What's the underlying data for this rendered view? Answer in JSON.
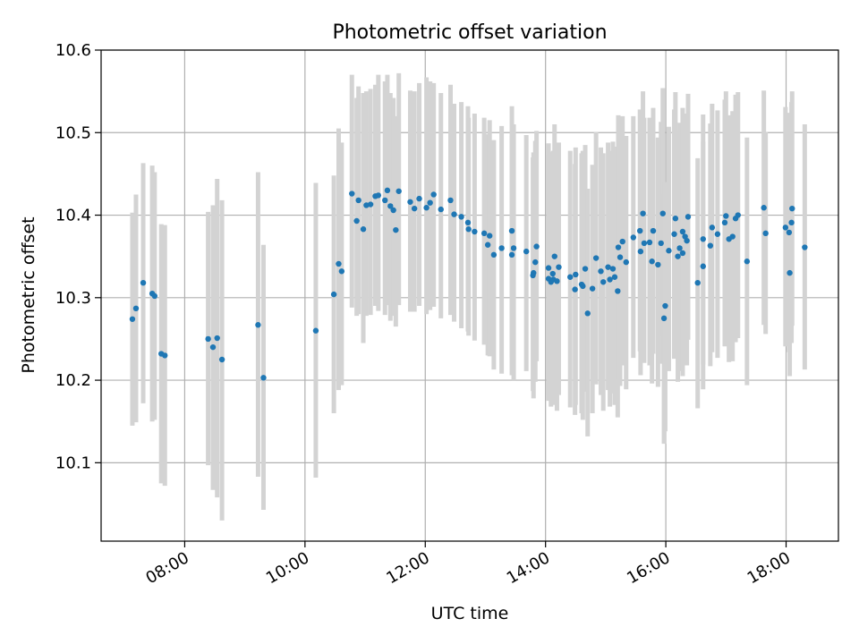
{
  "chart_data": {
    "type": "scatter",
    "title": "Photometric offset variation",
    "xlabel": "UTC time",
    "ylabel": "Photometric offset",
    "x_unit": "hours UTC",
    "xlim": [
      6.61,
      18.87
    ],
    "ylim": [
      10.005,
      10.6
    ],
    "x_ticks": [
      {
        "value": 8,
        "label": "08:00"
      },
      {
        "value": 10,
        "label": "10:00"
      },
      {
        "value": 12,
        "label": "12:00"
      },
      {
        "value": 14,
        "label": "14:00"
      },
      {
        "value": 16,
        "label": "16:00"
      },
      {
        "value": 18,
        "label": "18:00"
      }
    ],
    "y_ticks": [
      {
        "value": 10.1,
        "label": "10.1"
      },
      {
        "value": 10.2,
        "label": "10.2"
      },
      {
        "value": 10.3,
        "label": "10.3"
      },
      {
        "value": 10.4,
        "label": "10.4"
      },
      {
        "value": 10.5,
        "label": "10.5"
      },
      {
        "value": 10.6,
        "label": "10.6"
      }
    ],
    "grid": true,
    "marker_color": "#1f77b4",
    "errorbar_color": "#d3d3d3",
    "points": [
      [
        7.13,
        10.274,
        10.145,
        10.403
      ],
      [
        7.19,
        10.287,
        10.149,
        10.425
      ],
      [
        7.31,
        10.318,
        10.172,
        10.463
      ],
      [
        7.46,
        10.305,
        10.15,
        10.46
      ],
      [
        7.5,
        10.302,
        10.152,
        10.452
      ],
      [
        7.61,
        10.232,
        10.075,
        10.389
      ],
      [
        7.67,
        10.23,
        10.072,
        10.388
      ],
      [
        8.39,
        10.25,
        10.097,
        10.404
      ],
      [
        8.47,
        10.24,
        10.067,
        10.412
      ],
      [
        8.54,
        10.251,
        10.058,
        10.444
      ],
      [
        8.62,
        10.225,
        10.03,
        10.418
      ],
      [
        9.22,
        10.267,
        10.083,
        10.452
      ],
      [
        9.31,
        10.203,
        10.043,
        10.364
      ],
      [
        10.18,
        10.26,
        10.082,
        10.439
      ],
      [
        10.48,
        10.304,
        10.16,
        10.448
      ],
      [
        10.56,
        10.341,
        10.188,
        10.505
      ],
      [
        10.61,
        10.332,
        10.194,
        10.488
      ],
      [
        10.78,
        10.426,
        10.288,
        10.57
      ],
      [
        10.86,
        10.393,
        10.278,
        10.542
      ],
      [
        10.89,
        10.418,
        10.28,
        10.556
      ],
      [
        10.97,
        10.383,
        10.245,
        10.548
      ],
      [
        11.02,
        10.412,
        10.278,
        10.55
      ],
      [
        11.09,
        10.413,
        10.279,
        10.553
      ],
      [
        11.17,
        10.423,
        10.29,
        10.558
      ],
      [
        11.22,
        10.424,
        10.284,
        10.57
      ],
      [
        11.33,
        10.418,
        10.279,
        10.562
      ],
      [
        11.37,
        10.43,
        10.291,
        10.57
      ],
      [
        11.42,
        10.411,
        10.272,
        10.548
      ],
      [
        11.47,
        10.406,
        10.278,
        10.542
      ],
      [
        11.51,
        10.382,
        10.265,
        10.52
      ],
      [
        11.56,
        10.429,
        10.291,
        10.572
      ],
      [
        11.75,
        10.416,
        10.283,
        10.551
      ],
      [
        11.82,
        10.408,
        10.283,
        10.55
      ],
      [
        11.9,
        10.42,
        10.29,
        10.56
      ],
      [
        12.02,
        10.409,
        10.28,
        10.567
      ],
      [
        12.08,
        10.415,
        10.285,
        10.562
      ],
      [
        12.14,
        10.425,
        10.289,
        10.56
      ],
      [
        12.26,
        10.407,
        10.275,
        10.548
      ],
      [
        12.42,
        10.418,
        10.279,
        10.558
      ],
      [
        12.48,
        10.401,
        10.271,
        10.535
      ],
      [
        12.6,
        10.398,
        10.263,
        10.537
      ],
      [
        12.71,
        10.391,
        10.259,
        10.532
      ],
      [
        12.72,
        10.383,
        10.254,
        10.518
      ],
      [
        12.82,
        10.38,
        10.248,
        10.523
      ],
      [
        12.98,
        10.378,
        10.243,
        10.518
      ],
      [
        13.04,
        10.364,
        10.23,
        10.498
      ],
      [
        13.07,
        10.375,
        10.229,
        10.515
      ],
      [
        13.14,
        10.352,
        10.213,
        10.491
      ],
      [
        13.27,
        10.36,
        10.208,
        10.508
      ],
      [
        13.44,
        10.352,
        10.206,
        10.496
      ],
      [
        13.44,
        10.381,
        10.228,
        10.532
      ],
      [
        13.47,
        10.36,
        10.2,
        10.51
      ],
      [
        13.68,
        10.356,
        10.211,
        10.497
      ],
      [
        13.79,
        10.327,
        10.187,
        10.47
      ],
      [
        13.8,
        10.33,
        10.178,
        10.476
      ],
      [
        13.83,
        10.343,
        10.198,
        10.49
      ],
      [
        13.85,
        10.362,
        10.223,
        10.502
      ],
      [
        14.05,
        10.336,
        10.181,
        10.487
      ],
      [
        14.05,
        10.323,
        10.175,
        10.473
      ],
      [
        14.09,
        10.319,
        10.168,
        10.474
      ],
      [
        14.12,
        10.329,
        10.185,
        10.477
      ],
      [
        14.13,
        10.322,
        10.17,
        10.478
      ],
      [
        14.15,
        10.35,
        10.189,
        10.51
      ],
      [
        14.19,
        10.32,
        10.163,
        10.472
      ],
      [
        14.22,
        10.337,
        10.182,
        10.488
      ],
      [
        14.41,
        10.325,
        10.167,
        10.478
      ],
      [
        14.49,
        10.31,
        10.158,
        10.462
      ],
      [
        14.5,
        10.328,
        10.17,
        10.482
      ],
      [
        14.6,
        10.316,
        10.16,
        10.475
      ],
      [
        14.62,
        10.314,
        10.152,
        10.478
      ],
      [
        14.66,
        10.335,
        10.186,
        10.485
      ],
      [
        14.7,
        10.281,
        10.132,
        10.432
      ],
      [
        14.78,
        10.311,
        10.16,
        10.461
      ],
      [
        14.84,
        10.348,
        10.195,
        10.501
      ],
      [
        14.92,
        10.332,
        10.182,
        10.482
      ],
      [
        14.96,
        10.319,
        10.163,
        10.475
      ],
      [
        15.04,
        10.337,
        10.188,
        10.488
      ],
      [
        15.07,
        10.322,
        10.168,
        10.478
      ],
      [
        15.12,
        10.335,
        10.184,
        10.489
      ],
      [
        15.15,
        10.325,
        10.17,
        10.483
      ],
      [
        15.2,
        10.308,
        10.155,
        10.463
      ],
      [
        15.21,
        10.361,
        10.201,
        10.521
      ],
      [
        15.24,
        10.349,
        10.193,
        10.51
      ],
      [
        15.28,
        10.368,
        10.218,
        10.52
      ],
      [
        15.34,
        10.343,
        10.189,
        10.496
      ],
      [
        15.46,
        10.373,
        10.227,
        10.52
      ],
      [
        15.57,
        10.381,
        10.235,
        10.528
      ],
      [
        15.58,
        10.356,
        10.206,
        10.511
      ],
      [
        15.62,
        10.402,
        10.253,
        10.55
      ],
      [
        15.64,
        10.366,
        10.221,
        10.518
      ],
      [
        15.73,
        10.367,
        10.218,
        10.518
      ],
      [
        15.77,
        10.344,
        10.196,
        10.496
      ],
      [
        15.79,
        10.381,
        10.232,
        10.53
      ],
      [
        15.87,
        10.34,
        10.192,
        10.494
      ],
      [
        15.92,
        10.366,
        10.22,
        10.513
      ],
      [
        15.95,
        10.402,
        10.253,
        10.554
      ],
      [
        15.97,
        10.275,
        10.123,
        10.426
      ],
      [
        15.99,
        10.29,
        10.138,
        10.44
      ],
      [
        16.05,
        10.357,
        10.211,
        10.507
      ],
      [
        16.14,
        10.377,
        10.226,
        10.528
      ],
      [
        16.16,
        10.396,
        10.246,
        10.549
      ],
      [
        16.2,
        10.35,
        10.198,
        10.5
      ],
      [
        16.23,
        10.36,
        10.211,
        10.512
      ],
      [
        16.28,
        10.354,
        10.205,
        10.505
      ],
      [
        16.28,
        10.38,
        10.228,
        10.53
      ],
      [
        16.32,
        10.374,
        10.225,
        10.523
      ],
      [
        16.35,
        10.369,
        10.218,
        10.521
      ],
      [
        16.37,
        10.398,
        10.249,
        10.547
      ],
      [
        16.53,
        10.318,
        10.166,
        10.469
      ],
      [
        16.62,
        10.338,
        10.189,
        10.489
      ],
      [
        16.62,
        10.371,
        10.219,
        10.522
      ],
      [
        16.74,
        10.363,
        10.217,
        10.511
      ],
      [
        16.77,
        10.385,
        10.234,
        10.535
      ],
      [
        16.86,
        10.377,
        10.227,
        10.527
      ],
      [
        16.98,
        10.391,
        10.241,
        10.54
      ],
      [
        17.0,
        10.399,
        10.248,
        10.55
      ],
      [
        17.05,
        10.371,
        10.222,
        10.521
      ],
      [
        17.11,
        10.374,
        10.223,
        10.526
      ],
      [
        17.16,
        10.396,
        10.246,
        10.546
      ],
      [
        17.2,
        10.4,
        10.251,
        10.549
      ],
      [
        17.35,
        10.344,
        10.194,
        10.494
      ],
      [
        17.63,
        10.409,
        10.267,
        10.551
      ],
      [
        17.66,
        10.378,
        10.256,
        10.501
      ],
      [
        17.99,
        10.385,
        10.241,
        10.531
      ],
      [
        18.05,
        10.379,
        10.234,
        10.524
      ],
      [
        18.06,
        10.33,
        10.205,
        10.456
      ],
      [
        18.09,
        10.391,
        10.245,
        10.537
      ],
      [
        18.1,
        10.408,
        10.266,
        10.55
      ],
      [
        18.31,
        10.361,
        10.213,
        10.51
      ]
    ]
  }
}
